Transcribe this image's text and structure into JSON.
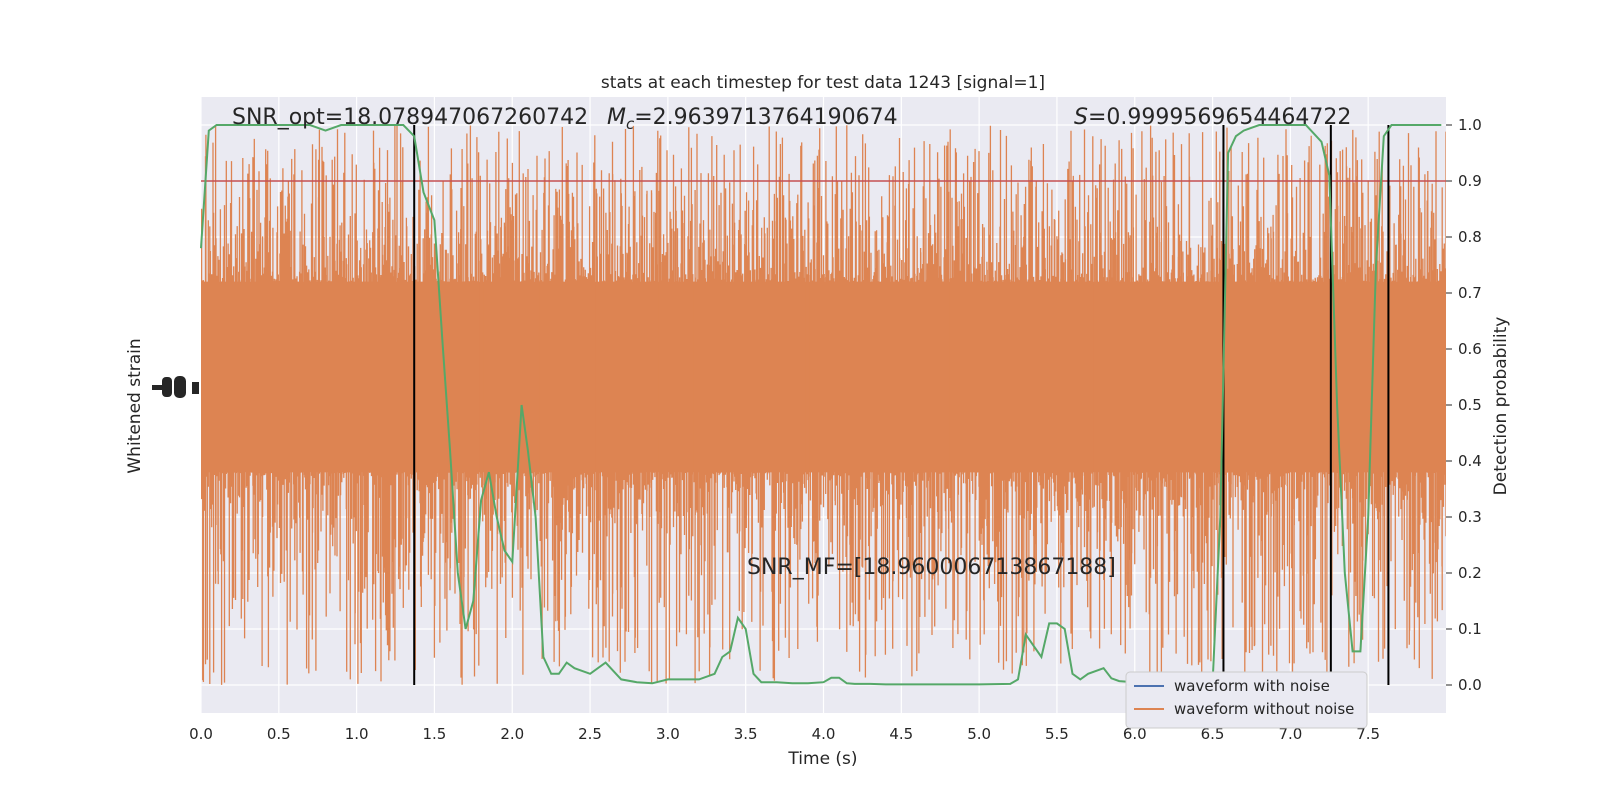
{
  "title": "stats at each timestep for test data 1243 [signal=1]",
  "annotations": {
    "snr_opt": "SNR_opt=18.078947067260742",
    "mc_symbol": "M",
    "mc_sub": "c",
    "mc_value": "=2.9639713764190674",
    "s_symbol": "S",
    "s_value": "=0.9999569654464722",
    "snr_mf": "SNR_MF=[18.960006713867188]"
  },
  "colors": {
    "plot_bg": "#eaeaf2",
    "grid": "#ffffff",
    "noisy_waveform": "#4c72b0",
    "clean_waveform": "#dd8452",
    "probability": "#55a868",
    "threshold": "#c44e52",
    "markers": "#000000"
  },
  "chart_data": {
    "type": "line",
    "title": "stats at each timestep for test data 1243 [signal=1]",
    "xlabel": "Time (s)",
    "ylabel_left": "Whitened strain",
    "ylabel_right": "Detection probability",
    "xlim": [
      0,
      8
    ],
    "ylim_right": [
      -0.05,
      1.05
    ],
    "x_ticks": [
      "0.0",
      "0.5",
      "1.0",
      "1.5",
      "2.0",
      "2.5",
      "3.0",
      "3.5",
      "4.0",
      "4.5",
      "5.0",
      "5.5",
      "6.0",
      "6.5",
      "7.0",
      "7.5"
    ],
    "y_ticks_right": [
      "0.0",
      "0.1",
      "0.2",
      "0.3",
      "0.4",
      "0.5",
      "0.6",
      "0.7",
      "0.8",
      "0.9",
      "1.0"
    ],
    "grid": true,
    "legend": {
      "position": "lower-right",
      "entries": [
        "waveform with noise",
        "waveform without noise"
      ]
    },
    "threshold": 0.9,
    "vertical_lines": [
      1.37,
      6.57,
      7.26,
      7.63
    ],
    "series": [
      {
        "name": "waveform with noise",
        "description_of_data": "dense whitened strain noise filling the plot; overplotted",
        "values": []
      },
      {
        "name": "waveform without noise",
        "band_upper_approx": 0.72,
        "band_lower_approx": 0.38,
        "spike_upper_max": 1.0,
        "spike_lower_min": 0.0
      },
      {
        "x": [
          0.0,
          0.05,
          0.1,
          0.2,
          0.3,
          0.4,
          0.5,
          0.6,
          0.7,
          0.8,
          0.9,
          1.0,
          1.1,
          1.2,
          1.3,
          1.37,
          1.43,
          1.5,
          1.55,
          1.6,
          1.65,
          1.7,
          1.75,
          1.8,
          1.85,
          1.9,
          1.95,
          2.0,
          2.06,
          2.1,
          2.15,
          2.2,
          2.25,
          2.3,
          2.35,
          2.4,
          2.5,
          2.6,
          2.7,
          2.8,
          2.9,
          3.0,
          3.1,
          3.2,
          3.3,
          3.35,
          3.4,
          3.45,
          3.5,
          3.55,
          3.6,
          3.7,
          3.8,
          3.9,
          4.0,
          4.05,
          4.1,
          4.15,
          4.2,
          4.3,
          4.4,
          4.5,
          4.6,
          4.8,
          5.0,
          5.2,
          5.25,
          5.3,
          5.35,
          5.4,
          5.45,
          5.5,
          5.55,
          5.6,
          5.65,
          5.7,
          5.8,
          5.85,
          5.9,
          6.0,
          6.1,
          6.2,
          6.3,
          6.4,
          6.5,
          6.55,
          6.6,
          6.65,
          6.7,
          6.8,
          6.9,
          7.0,
          7.1,
          7.2,
          7.25,
          7.3,
          7.35,
          7.4,
          7.45,
          7.5,
          7.55,
          7.6,
          7.65,
          7.7,
          7.8,
          7.9,
          7.97
        ],
        "y": [
          0.78,
          0.99,
          1.0,
          1.0,
          1.0,
          1.0,
          1.0,
          1.0,
          1.0,
          0.99,
          1.0,
          1.0,
          1.0,
          1.0,
          1.0,
          0.98,
          0.88,
          0.83,
          0.62,
          0.42,
          0.2,
          0.1,
          0.15,
          0.33,
          0.38,
          0.3,
          0.24,
          0.22,
          0.5,
          0.42,
          0.3,
          0.05,
          0.02,
          0.02,
          0.04,
          0.03,
          0.02,
          0.04,
          0.01,
          0.005,
          0.003,
          0.01,
          0.01,
          0.01,
          0.02,
          0.05,
          0.06,
          0.12,
          0.1,
          0.02,
          0.005,
          0.005,
          0.003,
          0.003,
          0.005,
          0.013,
          0.013,
          0.003,
          0.002,
          0.002,
          0.001,
          0.001,
          0.001,
          0.001,
          0.001,
          0.002,
          0.01,
          0.09,
          0.07,
          0.05,
          0.11,
          0.11,
          0.1,
          0.02,
          0.01,
          0.02,
          0.03,
          0.012,
          0.007,
          0.005,
          0.005,
          0.005,
          0.005,
          0.005,
          0.005,
          0.3,
          0.95,
          0.98,
          0.99,
          1.0,
          1.0,
          1.0,
          1.0,
          0.97,
          0.91,
          0.5,
          0.2,
          0.06,
          0.06,
          0.3,
          0.75,
          0.98,
          1.0,
          1.0,
          1.0,
          1.0,
          1.0
        ]
      }
    ]
  }
}
